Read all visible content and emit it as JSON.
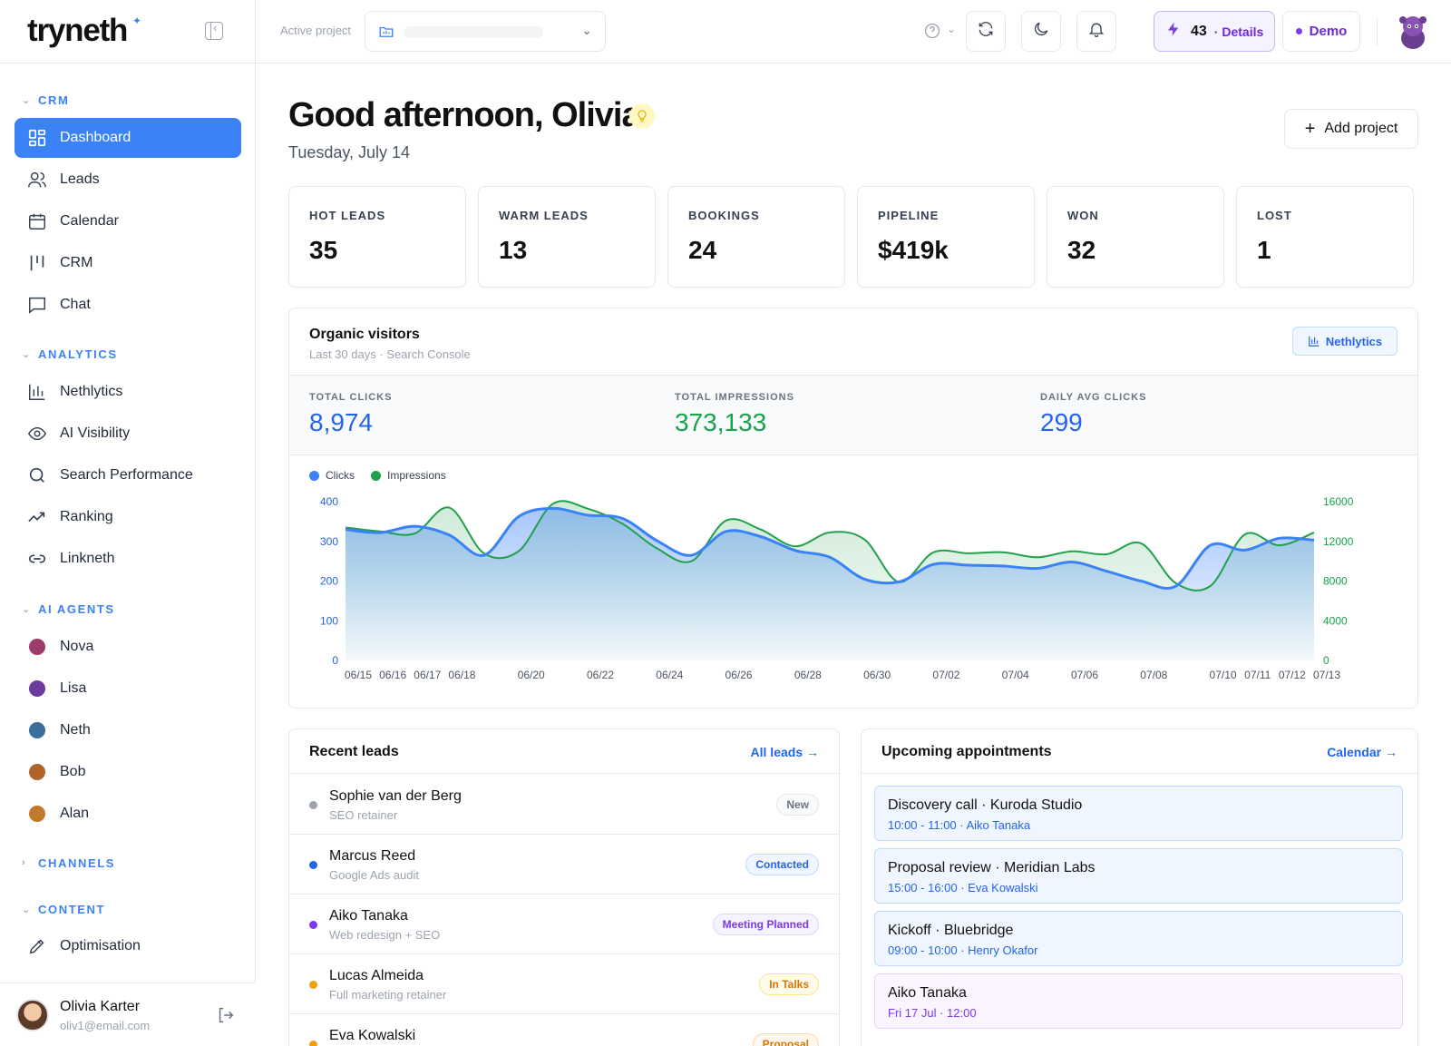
{
  "sidebar": {
    "logo": "tryneth",
    "sections": [
      {
        "label": "CRM",
        "items": [
          {
            "label": "Dashboard",
            "icon": "grid-icon",
            "active": true
          },
          {
            "label": "Leads",
            "icon": "users-icon"
          },
          {
            "label": "Calendar",
            "icon": "calendar-icon"
          },
          {
            "label": "CRM",
            "icon": "kanban-icon"
          },
          {
            "label": "Chat",
            "icon": "chat-icon"
          }
        ]
      },
      {
        "label": "ANALYTICS",
        "items": [
          {
            "label": "Nethlytics",
            "icon": "bar-chart-icon"
          },
          {
            "label": "AI Visibility",
            "icon": "eye-icon"
          },
          {
            "label": "Search Performance",
            "icon": "search-icon"
          },
          {
            "label": "Ranking",
            "icon": "trend-icon"
          },
          {
            "label": "Linkneth",
            "icon": "link-icon"
          }
        ]
      },
      {
        "label": "AI AGENTS",
        "items": [
          {
            "label": "Nova",
            "color": "#9d3b6b"
          },
          {
            "label": "Lisa",
            "color": "#6d3b9d"
          },
          {
            "label": "Neth",
            "color": "#3b6d9d"
          },
          {
            "label": "Bob",
            "color": "#b0642b"
          },
          {
            "label": "Alan",
            "color": "#c07a2b"
          }
        ]
      },
      {
        "label": "CHANNELS",
        "items": []
      },
      {
        "label": "CONTENT",
        "items": [
          {
            "label": "Optimisation",
            "icon": "pen-icon"
          }
        ]
      }
    ],
    "user": {
      "name": "Olivia Karter",
      "email": "oliv1@email.com"
    }
  },
  "topbar": {
    "active_project_label": "Active project",
    "credits": "43",
    "credits_details": "· Details",
    "demo_label": "Demo"
  },
  "main": {
    "greeting": "Good afternoon, Olivia",
    "date": "Tuesday, July 14",
    "add_project": "Add project",
    "stats": [
      {
        "label": "HOT LEADS",
        "value": "35"
      },
      {
        "label": "WARM LEADS",
        "value": "13"
      },
      {
        "label": "BOOKINGS",
        "value": "24"
      },
      {
        "label": "PIPELINE",
        "value": "$419k"
      },
      {
        "label": "WON",
        "value": "32"
      },
      {
        "label": "LOST",
        "value": "1"
      }
    ],
    "visitors": {
      "title": "Organic visitors",
      "subtitle": "Last 30 days · Search Console",
      "button": "Nethlytics",
      "metrics": [
        {
          "label": "TOTAL CLICKS",
          "value": "8,974",
          "color": "#2563eb"
        },
        {
          "label": "TOTAL IMPRESSIONS",
          "value": "373,133",
          "color": "#16a34a"
        },
        {
          "label": "DAILY AVG CLICKS",
          "value": "299",
          "color": "#2563eb"
        }
      ]
    },
    "recent_leads": {
      "title": "Recent leads",
      "link": "All leads →",
      "items": [
        {
          "name": "Sophie van der Berg",
          "sub": "SEO retainer",
          "badge": "New",
          "dot": "#9ca3af",
          "badge_color": "#6b7280",
          "badge_bg": "#f9fafb",
          "badge_border": "#e5e7eb"
        },
        {
          "name": "Marcus Reed",
          "sub": "Google Ads audit",
          "badge": "Contacted",
          "dot": "#2563eb",
          "badge_color": "#2563eb",
          "badge_bg": "#eff6ff",
          "badge_border": "#bfdbfe"
        },
        {
          "name": "Aiko Tanaka",
          "sub": "Web redesign + SEO",
          "badge": "Meeting Planned",
          "dot": "#7c3aed",
          "badge_color": "#7c3aed",
          "badge_bg": "#f5f3ff",
          "badge_border": "#ddd6fe"
        },
        {
          "name": "Lucas Almeida",
          "sub": "Full marketing retainer",
          "badge": "In Talks",
          "dot": "#f59e0b",
          "badge_color": "#d97706",
          "badge_bg": "#fffbeb",
          "badge_border": "#fde68a"
        },
        {
          "name": "Eva Kowalski",
          "sub": "",
          "badge": "Proposal",
          "dot": "#f59e0b",
          "badge_color": "#d97706",
          "badge_bg": "#fff7ed",
          "badge_border": "#fed7aa"
        }
      ]
    },
    "appointments": {
      "title": "Upcoming appointments",
      "link": "Calendar →",
      "items": [
        {
          "title": "Discovery call · Kuroda Studio",
          "sub": "10:00 - 11:00 · Aiko Tanaka",
          "alt": false
        },
        {
          "title": "Proposal review · Meridian Labs",
          "sub": "15:00 - 16:00 · Eva Kowalski",
          "alt": false
        },
        {
          "title": "Kickoff · Bluebridge",
          "sub": "09:00 - 10:00 · Henry Okafor",
          "alt": false
        },
        {
          "title": "Aiko Tanaka",
          "sub": "Fri 17 Jul · 12:00",
          "alt": true
        }
      ]
    }
  },
  "chart_data": {
    "type": "area",
    "legend": [
      "Clicks",
      "Impressions"
    ],
    "legend_placement": "top-left",
    "x": [
      "06/15",
      "06/16",
      "06/17",
      "06/18",
      "06/19",
      "06/20",
      "06/21",
      "06/22",
      "06/23",
      "06/24",
      "06/25",
      "06/26",
      "06/27",
      "06/28",
      "06/29",
      "06/30",
      "07/01",
      "07/02",
      "07/03",
      "07/04",
      "07/05",
      "07/06",
      "07/07",
      "07/08",
      "07/09",
      "07/10",
      "07/11",
      "07/12",
      "07/13"
    ],
    "x_tick_labels": [
      "06/15",
      "06/16",
      "06/17",
      "06/18",
      "06/20",
      "06/22",
      "06/24",
      "06/26",
      "06/28",
      "06/30",
      "07/02",
      "07/04",
      "07/06",
      "07/08",
      "07/10",
      "07/11",
      "07/12",
      "07/13"
    ],
    "y_left": {
      "ticks": [
        "400",
        "300",
        "200",
        "100",
        "0"
      ],
      "range": [
        0,
        400
      ]
    },
    "y_right": {
      "ticks": [
        "16000",
        "12000",
        "8000",
        "4000",
        "0"
      ],
      "range": [
        0,
        16000
      ]
    },
    "series": [
      {
        "name": "Clicks",
        "axis": "left",
        "color": "#3b82f6",
        "values": [
          330,
          322,
          338,
          316,
          265,
          362,
          383,
          366,
          358,
          302,
          265,
          325,
          312,
          277,
          260,
          205,
          198,
          242,
          240,
          238,
          232,
          248,
          225,
          200,
          187,
          290,
          278,
          308,
          303
        ]
      },
      {
        "name": "Impressions",
        "axis": "right",
        "color": "#22a04b",
        "values": [
          13400,
          13000,
          12800,
          15400,
          10800,
          11000,
          15800,
          15300,
          13800,
          11300,
          10000,
          14100,
          13200,
          11500,
          12900,
          12200,
          7900,
          10900,
          10800,
          10900,
          10400,
          11000,
          10700,
          11800,
          7800,
          7500,
          12700,
          11600,
          12900
        ]
      }
    ]
  }
}
